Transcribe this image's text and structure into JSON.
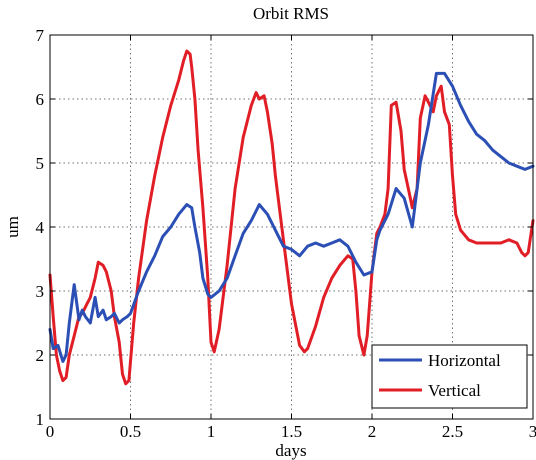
{
  "chart_data": {
    "type": "line",
    "title": "Orbit RMS",
    "xlabel": "days",
    "ylabel": "um",
    "xlim": [
      0,
      3
    ],
    "ylim": [
      1,
      7
    ],
    "grid": true,
    "legend_position": "bottom-right",
    "x_ticks": [
      0,
      0.5,
      1,
      1.5,
      2,
      2.5,
      3
    ],
    "x_tick_labels": [
      "0",
      "0.5",
      "1",
      "1.5",
      "2",
      "2.5",
      "3"
    ],
    "y_ticks": [
      1,
      2,
      3,
      4,
      5,
      6,
      7
    ],
    "y_tick_labels": [
      "1",
      "2",
      "3",
      "4",
      "5",
      "6",
      "7"
    ],
    "series": [
      {
        "name": "Horizontal",
        "color": "#2b4fb5",
        "x": [
          0,
          0.02,
          0.05,
          0.08,
          0.1,
          0.12,
          0.15,
          0.18,
          0.2,
          0.22,
          0.25,
          0.28,
          0.3,
          0.33,
          0.35,
          0.38,
          0.4,
          0.43,
          0.45,
          0.48,
          0.5,
          0.55,
          0.6,
          0.65,
          0.7,
          0.75,
          0.8,
          0.85,
          0.88,
          0.9,
          0.93,
          0.95,
          0.98,
          1.0,
          1.05,
          1.1,
          1.15,
          1.2,
          1.25,
          1.3,
          1.35,
          1.4,
          1.45,
          1.5,
          1.55,
          1.6,
          1.65,
          1.7,
          1.75,
          1.8,
          1.85,
          1.9,
          1.95,
          2.0,
          2.03,
          2.05,
          2.1,
          2.15,
          2.2,
          2.25,
          2.3,
          2.35,
          2.4,
          2.45,
          2.5,
          2.55,
          2.6,
          2.65,
          2.7,
          2.75,
          2.8,
          2.85,
          2.9,
          2.95,
          3.0
        ],
        "values": [
          2.4,
          2.1,
          2.15,
          1.9,
          2.0,
          2.5,
          3.1,
          2.55,
          2.7,
          2.6,
          2.5,
          2.9,
          2.6,
          2.7,
          2.55,
          2.6,
          2.65,
          2.5,
          2.55,
          2.6,
          2.65,
          3.0,
          3.3,
          3.55,
          3.85,
          4.0,
          4.2,
          4.35,
          4.3,
          4.0,
          3.6,
          3.2,
          2.95,
          2.9,
          3.0,
          3.2,
          3.55,
          3.9,
          4.1,
          4.35,
          4.2,
          3.95,
          3.7,
          3.65,
          3.55,
          3.7,
          3.75,
          3.7,
          3.75,
          3.8,
          3.7,
          3.45,
          3.25,
          3.3,
          3.8,
          3.95,
          4.2,
          4.6,
          4.45,
          4.0,
          5.0,
          5.6,
          6.4,
          6.4,
          6.2,
          5.9,
          5.65,
          5.45,
          5.35,
          5.2,
          5.1,
          5.0,
          4.95,
          4.9,
          4.95
        ]
      },
      {
        "name": "Vertical",
        "color": "#e11e26",
        "x": [
          0,
          0.02,
          0.04,
          0.06,
          0.08,
          0.1,
          0.12,
          0.15,
          0.18,
          0.2,
          0.23,
          0.25,
          0.28,
          0.3,
          0.33,
          0.35,
          0.38,
          0.4,
          0.43,
          0.45,
          0.47,
          0.49,
          0.5,
          0.52,
          0.55,
          0.6,
          0.65,
          0.7,
          0.75,
          0.8,
          0.83,
          0.85,
          0.87,
          0.88,
          0.9,
          0.92,
          0.95,
          0.98,
          1.0,
          1.02,
          1.05,
          1.1,
          1.15,
          1.2,
          1.25,
          1.28,
          1.3,
          1.33,
          1.35,
          1.38,
          1.4,
          1.45,
          1.5,
          1.55,
          1.58,
          1.6,
          1.65,
          1.7,
          1.75,
          1.8,
          1.85,
          1.88,
          1.9,
          1.92,
          1.95,
          1.97,
          2.0,
          2.03,
          2.05,
          2.08,
          2.1,
          2.12,
          2.15,
          2.18,
          2.2,
          2.23,
          2.25,
          2.28,
          2.3,
          2.33,
          2.35,
          2.38,
          2.4,
          2.43,
          2.45,
          2.48,
          2.5,
          2.52,
          2.55,
          2.6,
          2.65,
          2.7,
          2.75,
          2.8,
          2.85,
          2.9,
          2.93,
          2.95,
          2.97,
          3.0
        ],
        "values": [
          3.25,
          2.6,
          2.0,
          1.75,
          1.6,
          1.65,
          2.0,
          2.3,
          2.6,
          2.65,
          2.8,
          2.9,
          3.2,
          3.45,
          3.4,
          3.3,
          3.0,
          2.6,
          2.2,
          1.7,
          1.55,
          1.6,
          1.9,
          2.5,
          3.2,
          4.1,
          4.8,
          5.4,
          5.9,
          6.3,
          6.6,
          6.75,
          6.7,
          6.5,
          6.0,
          5.2,
          4.3,
          3.2,
          2.2,
          2.05,
          2.4,
          3.4,
          4.6,
          5.4,
          5.9,
          6.1,
          6.0,
          6.05,
          5.8,
          5.3,
          4.8,
          3.8,
          2.8,
          2.15,
          2.05,
          2.1,
          2.45,
          2.9,
          3.2,
          3.4,
          3.55,
          3.5,
          3.0,
          2.3,
          2.0,
          2.3,
          3.3,
          3.9,
          4.0,
          4.2,
          4.6,
          5.9,
          5.95,
          5.5,
          4.9,
          4.55,
          4.3,
          4.6,
          5.7,
          6.05,
          5.95,
          5.8,
          6.05,
          6.2,
          5.8,
          5.6,
          4.8,
          4.2,
          3.95,
          3.8,
          3.75,
          3.75,
          3.75,
          3.75,
          3.8,
          3.75,
          3.6,
          3.55,
          3.6,
          4.1
        ]
      }
    ]
  }
}
